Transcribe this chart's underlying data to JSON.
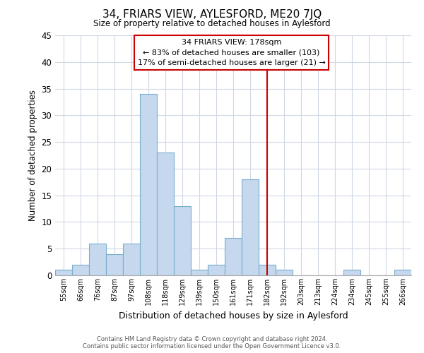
{
  "title": "34, FRIARS VIEW, AYLESFORD, ME20 7JQ",
  "subtitle": "Size of property relative to detached houses in Aylesford",
  "xlabel": "Distribution of detached houses by size in Aylesford",
  "ylabel": "Number of detached properties",
  "bar_labels": [
    "55sqm",
    "66sqm",
    "76sqm",
    "87sqm",
    "97sqm",
    "108sqm",
    "118sqm",
    "129sqm",
    "139sqm",
    "150sqm",
    "161sqm",
    "171sqm",
    "182sqm",
    "192sqm",
    "203sqm",
    "213sqm",
    "224sqm",
    "234sqm",
    "245sqm",
    "255sqm",
    "266sqm"
  ],
  "bar_heights": [
    1,
    2,
    6,
    4,
    6,
    34,
    23,
    13,
    1,
    2,
    7,
    18,
    2,
    1,
    0,
    0,
    0,
    1,
    0,
    0,
    1
  ],
  "bar_color": "#c5d8ed",
  "bar_edge_color": "#7aaece",
  "vline_x": 12,
  "vline_color": "#cc0000",
  "ylim": [
    0,
    45
  ],
  "yticks": [
    0,
    5,
    10,
    15,
    20,
    25,
    30,
    35,
    40,
    45
  ],
  "annotation_title": "34 FRIARS VIEW: 178sqm",
  "annotation_line1": "← 83% of detached houses are smaller (103)",
  "annotation_line2": "17% of semi-detached houses are larger (21) →",
  "annotation_box_color": "#ffffff",
  "annotation_box_edge": "#cc0000",
  "footer_line1": "Contains HM Land Registry data © Crown copyright and database right 2024.",
  "footer_line2": "Contains public sector information licensed under the Open Government Licence v3.0.",
  "background_color": "#ffffff",
  "grid_color": "#d0d8e4"
}
